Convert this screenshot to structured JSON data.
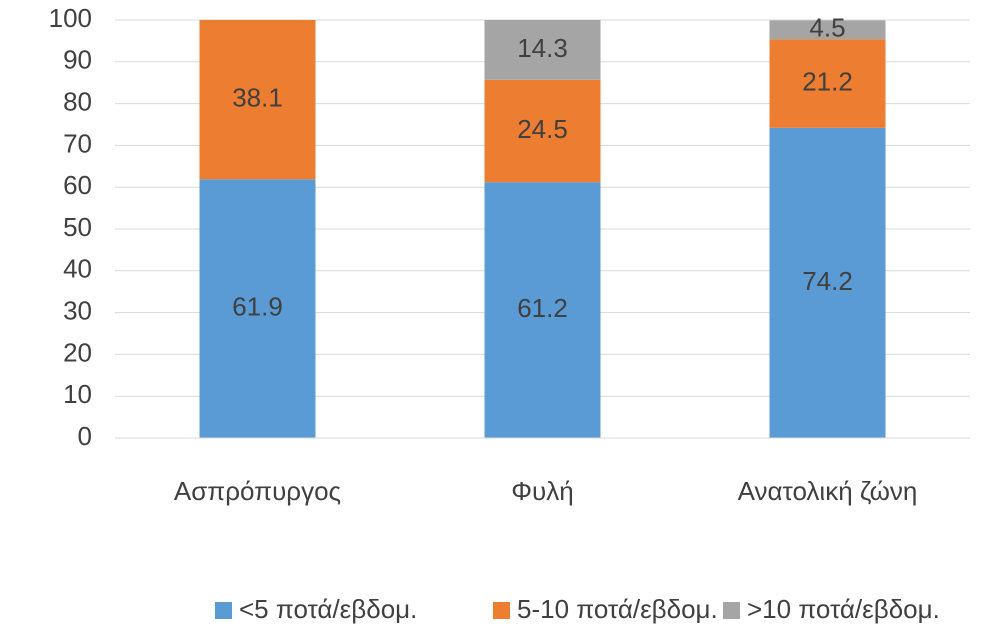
{
  "chart_data": {
    "type": "stacked_bar",
    "categories": [
      "Ασπρόπυργος",
      "Φυλή",
      "Ανατολική ζώνη"
    ],
    "series": [
      {
        "name": "<5 ποτά/εβδομ.",
        "color": "#5b9bd5",
        "values": [
          61.9,
          61.2,
          74.2
        ]
      },
      {
        "name": "5-10 ποτά/εβδομ.",
        "color": "#ed7d31",
        "values": [
          38.1,
          24.5,
          21.2
        ]
      },
      {
        "name": ">10 ποτά/εβδομ.",
        "color": "#a5a5a5",
        "values": [
          null,
          14.3,
          4.5
        ]
      }
    ],
    "ylim": [
      0,
      100
    ],
    "yticks": [
      0,
      10,
      20,
      30,
      40,
      50,
      60,
      70,
      80,
      90,
      100
    ],
    "grid": true,
    "legend": "bottom"
  }
}
